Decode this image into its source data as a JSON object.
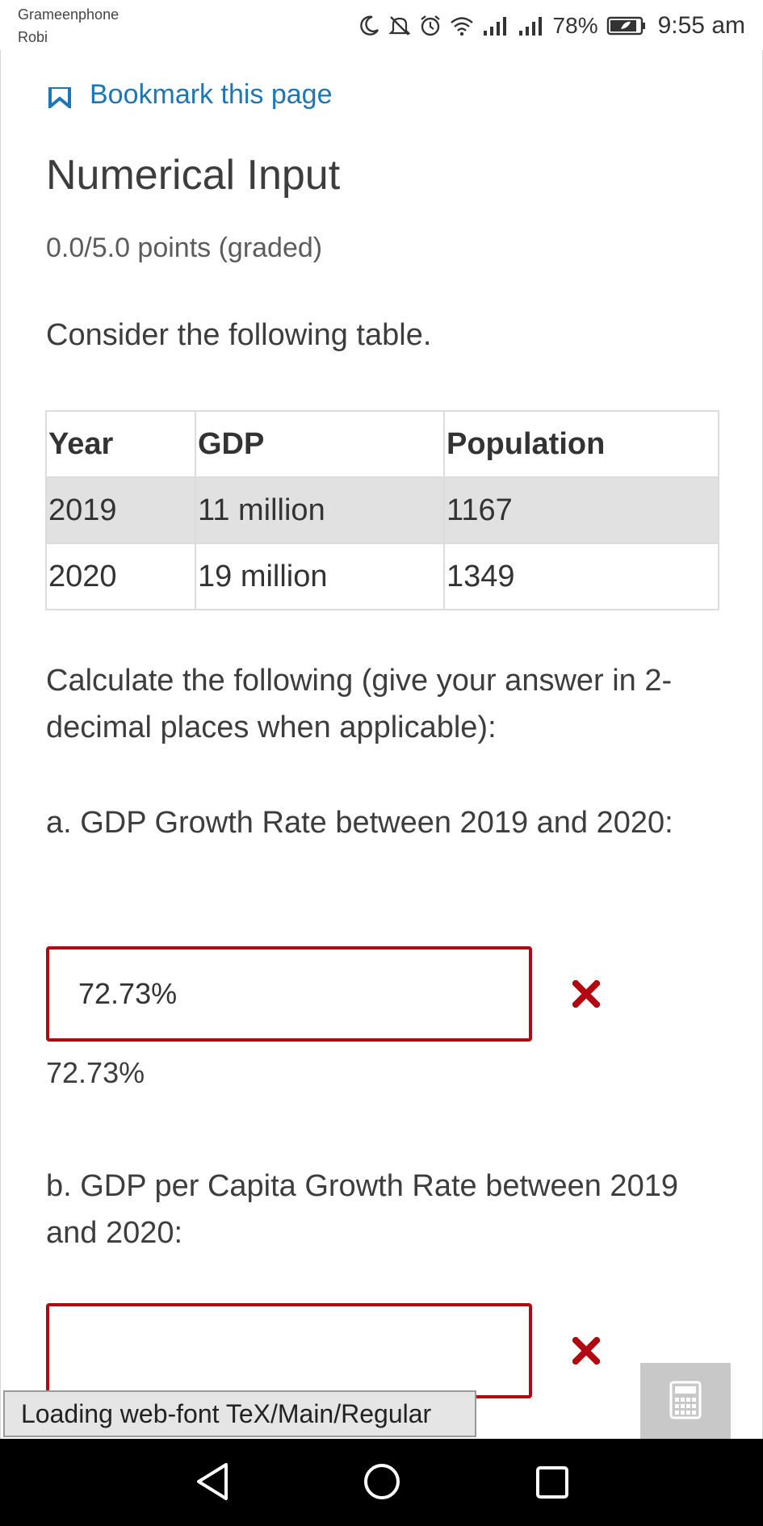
{
  "status_bar": {
    "carrier_primary": "Grameenphone",
    "carrier_secondary": "Robi",
    "icons": [
      "moon-icon",
      "mute-icon",
      "alarm-icon",
      "wifi-icon",
      "signal-icon",
      "signal-icon-2",
      "battery-icon"
    ],
    "battery_percent": "78%",
    "time": "9:55 am"
  },
  "page": {
    "bookmark_label": "Bookmark this page",
    "title": "Numerical Input",
    "points": "0.0/5.0 points (graded)",
    "intro": "Consider the following table."
  },
  "table": {
    "headers": [
      "Year",
      "GDP",
      "Population"
    ],
    "rows": [
      [
        "2019",
        "11 million",
        "1167"
      ],
      [
        "2020",
        "19 million",
        "1349"
      ]
    ]
  },
  "instructions": "Calculate the following (give your answer in 2-decimal places when applicable):",
  "questions": [
    {
      "label": "a. GDP Growth Rate between 2019 and 2020:",
      "input_value": "72.73%",
      "answer_echo": "72.73%",
      "status": "incorrect"
    },
    {
      "label": "b. GDP per Capita Growth Rate between 2019 and 2020:",
      "input_value": "",
      "status": "incorrect"
    }
  ],
  "loading_message": "Loading web-font TeX/Main/Regular",
  "colors": {
    "error": "#b20610",
    "link": "#1e76b5",
    "table_shade": "#e1e1e1"
  }
}
